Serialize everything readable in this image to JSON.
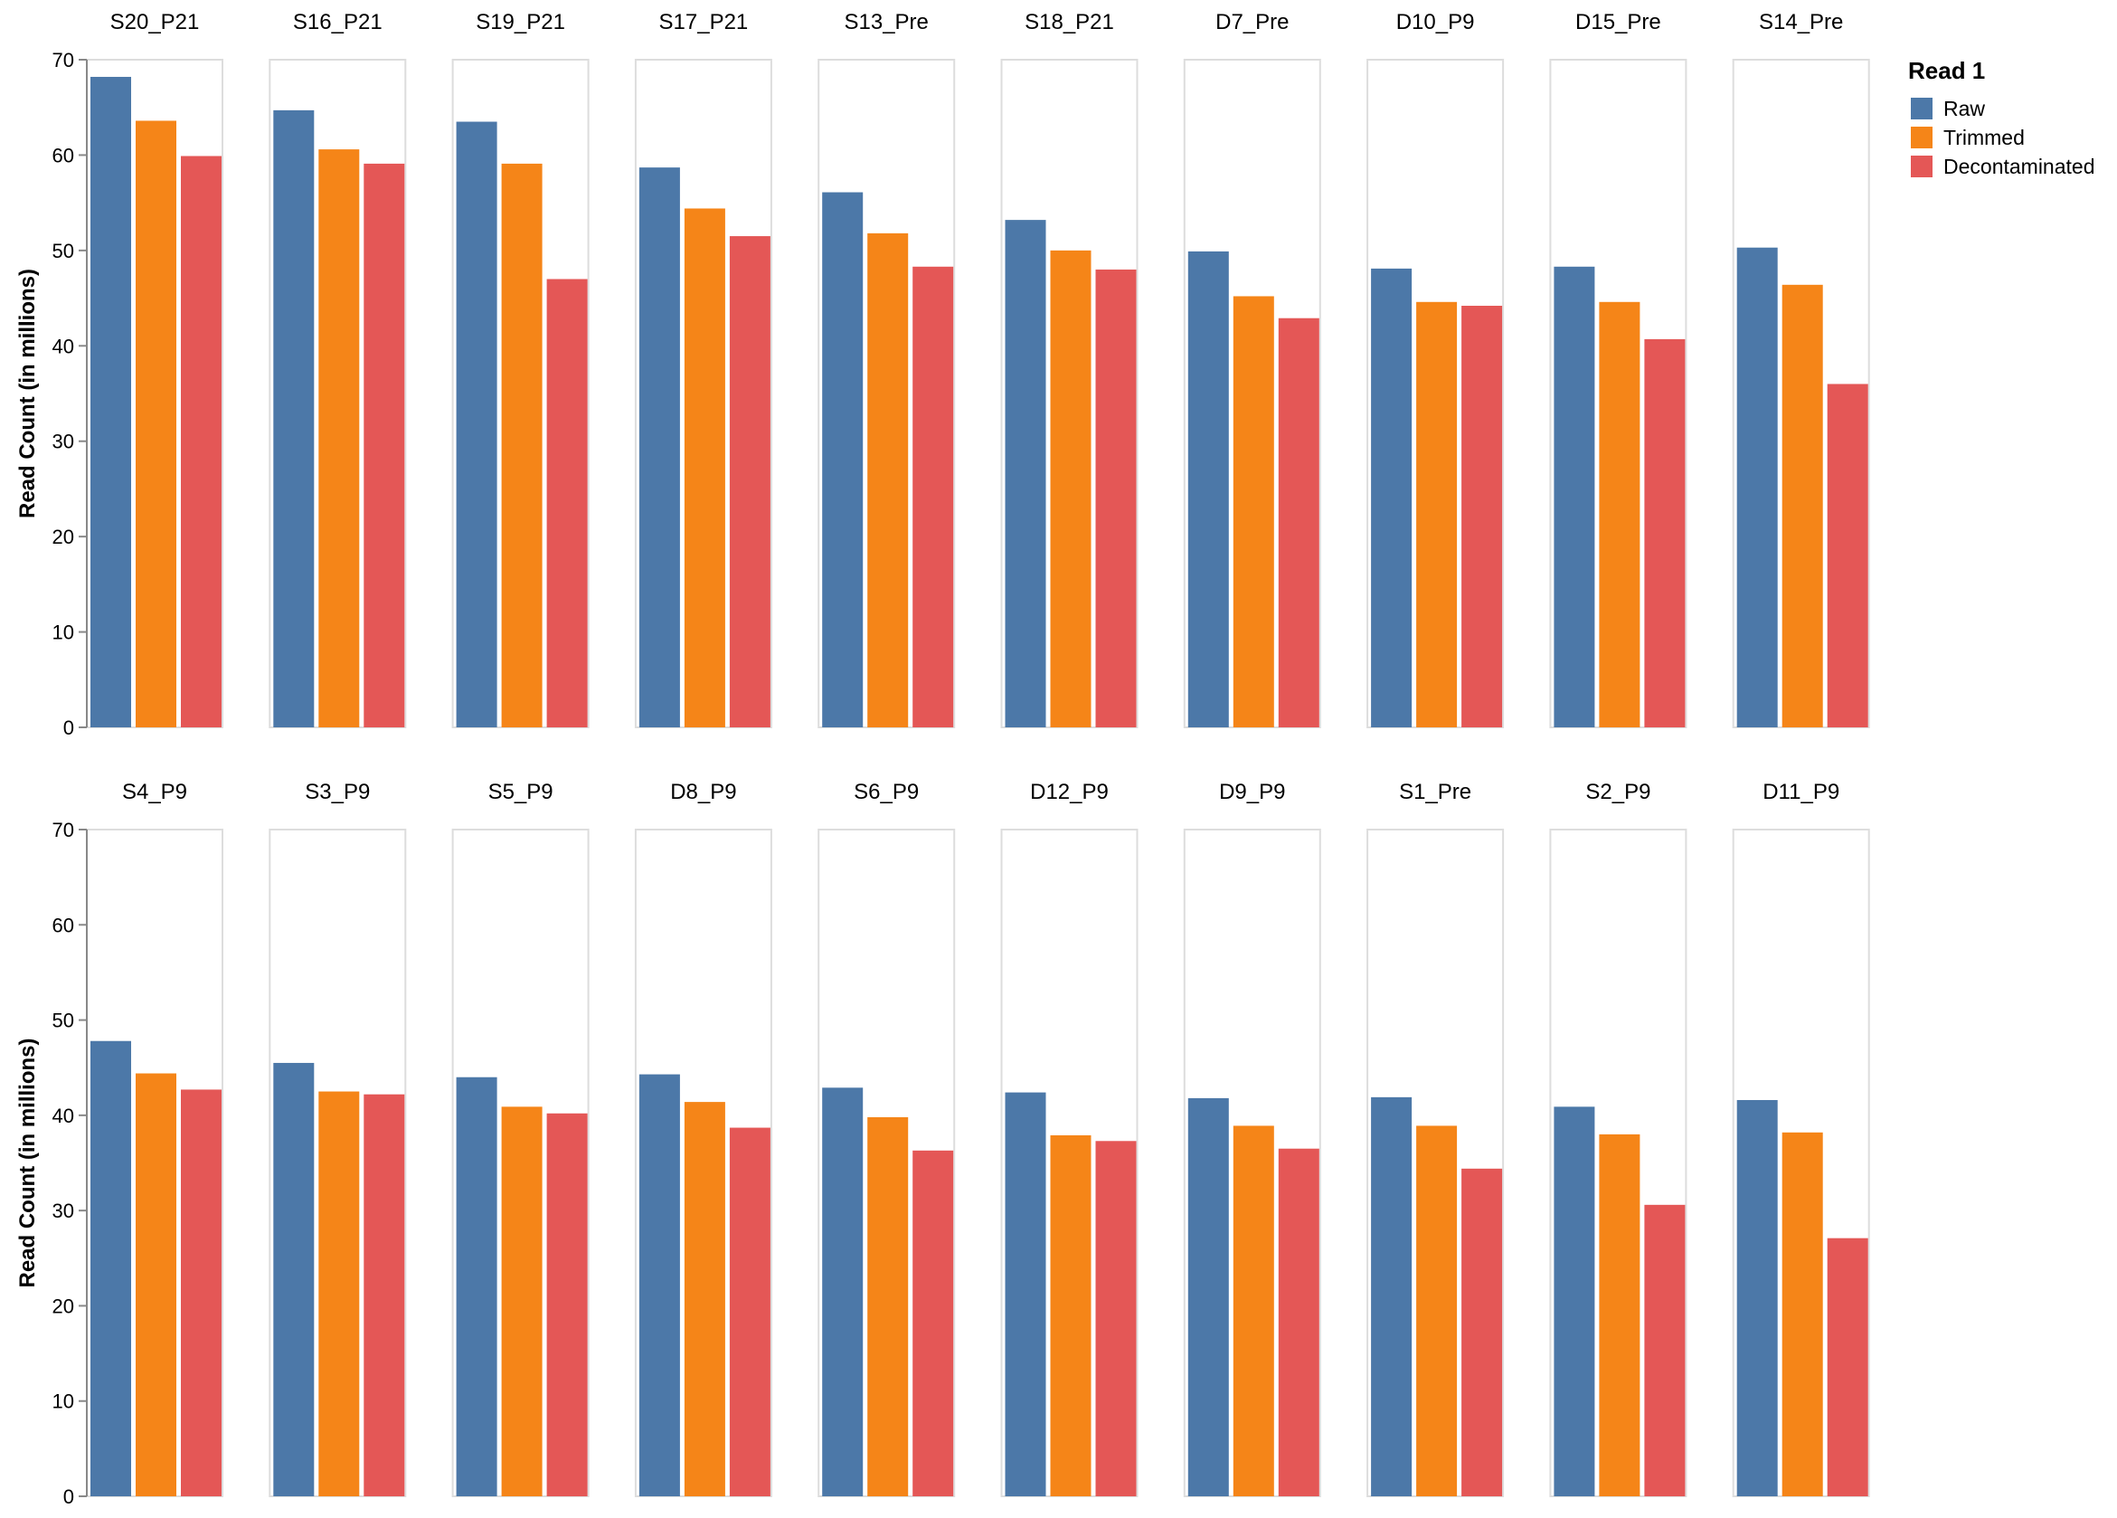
{
  "chart_data": {
    "type": "bar",
    "layout": "faceted grouped bar chart, 2 rows x 10 columns",
    "ylabel": "Read Count (in millions)",
    "ylim": [
      0,
      70
    ],
    "yticks": [
      0,
      10,
      20,
      30,
      40,
      50,
      60,
      70
    ],
    "grid": false,
    "legend": {
      "title": "Read 1",
      "placement": "right",
      "entries": [
        "Raw",
        "Trimmed",
        "Decontaminated"
      ]
    },
    "series_colors": {
      "Raw": "#4c78a8",
      "Trimmed": "#f58518",
      "Decontaminated": "#e45756"
    },
    "facet_border_color": "#dddddd",
    "rows": [
      {
        "facets": [
          {
            "name": "S20_P21",
            "values": [
              68.2,
              63.6,
              59.9
            ]
          },
          {
            "name": "S16_P21",
            "values": [
              64.7,
              60.6,
              59.1
            ]
          },
          {
            "name": "S19_P21",
            "values": [
              63.5,
              59.1,
              47.0
            ]
          },
          {
            "name": "S17_P21",
            "values": [
              58.7,
              54.4,
              51.5
            ]
          },
          {
            "name": "S13_Pre",
            "values": [
              56.1,
              51.8,
              48.3
            ]
          },
          {
            "name": "S18_P21",
            "values": [
              53.2,
              50.0,
              48.0
            ]
          },
          {
            "name": "D7_Pre",
            "values": [
              49.9,
              45.2,
              42.9
            ]
          },
          {
            "name": "D10_P9",
            "values": [
              48.1,
              44.6,
              44.2
            ]
          },
          {
            "name": "D15_Pre",
            "values": [
              48.3,
              44.6,
              40.7
            ]
          },
          {
            "name": "S14_Pre",
            "values": [
              50.3,
              46.4,
              36.0
            ]
          }
        ]
      },
      {
        "facets": [
          {
            "name": "S4_P9",
            "values": [
              47.8,
              44.4,
              42.7
            ]
          },
          {
            "name": "S3_P9",
            "values": [
              45.5,
              42.5,
              42.2
            ]
          },
          {
            "name": "S5_P9",
            "values": [
              44.0,
              40.9,
              40.2
            ]
          },
          {
            "name": "D8_P9",
            "values": [
              44.3,
              41.4,
              38.7
            ]
          },
          {
            "name": "S6_P9",
            "values": [
              42.9,
              39.8,
              36.3
            ]
          },
          {
            "name": "D12_P9",
            "values": [
              42.4,
              37.9,
              37.3
            ]
          },
          {
            "name": "D9_P9",
            "values": [
              41.8,
              38.9,
              36.5
            ]
          },
          {
            "name": "S1_Pre",
            "values": [
              41.9,
              38.9,
              34.4
            ]
          },
          {
            "name": "S2_P9",
            "values": [
              40.9,
              38.0,
              30.6
            ]
          },
          {
            "name": "D11_P9",
            "values": [
              41.6,
              38.2,
              27.1
            ]
          }
        ]
      }
    ]
  }
}
